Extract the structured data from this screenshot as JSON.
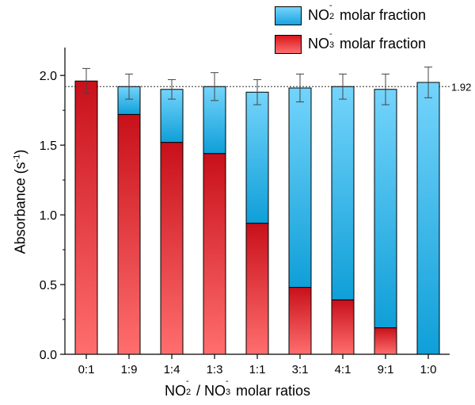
{
  "chart_data": {
    "type": "bar",
    "stacked": true,
    "categories": [
      "0:1",
      "1:9",
      "1:4",
      "1:3",
      "1:1",
      "3:1",
      "4:1",
      "9:1",
      "1:0"
    ],
    "series": [
      {
        "name": "NO3- molar fraction",
        "color": "#d7181c",
        "values": [
          1.96,
          1.72,
          1.52,
          1.44,
          0.94,
          0.48,
          0.39,
          0.19,
          0.0
        ]
      },
      {
        "name": "NO2- molar fraction",
        "color": "#1aa3e0",
        "values": [
          0.0,
          0.2,
          0.38,
          0.48,
          0.94,
          1.43,
          1.53,
          1.71,
          1.95
        ]
      }
    ],
    "error_bars": [
      0.09,
      0.09,
      0.07,
      0.1,
      0.09,
      0.1,
      0.09,
      0.11,
      0.11
    ],
    "reference_line": {
      "value": 1.92,
      "label": "1.92",
      "style": "dotted"
    },
    "ylim": [
      0.0,
      2.2
    ],
    "yticks": [
      "0.0",
      "0.5",
      "1.0",
      "1.5",
      "2.0"
    ],
    "ylabel_text": "Absorbance (s",
    "ylabel_sup": "-1",
    "ylabel_close": ")",
    "xlabel": {
      "no2_base": "NO",
      "no2_sub": "2",
      "no2_sup": "-",
      "separator": " / ",
      "no3_base": "NO",
      "no3_sub": "3",
      "no3_sup": "-",
      "suffix": " molar ratios"
    },
    "legend": [
      {
        "base": "NO",
        "sub": "2",
        "sup": "-",
        "suffix": " molar fraction",
        "color": "#3ab4ec"
      },
      {
        "base": "NO",
        "sub": "3",
        "sup": "-",
        "suffix": " molar fraction",
        "color": "#e8454a"
      }
    ],
    "grid": false,
    "legend_placement": "top-right"
  }
}
